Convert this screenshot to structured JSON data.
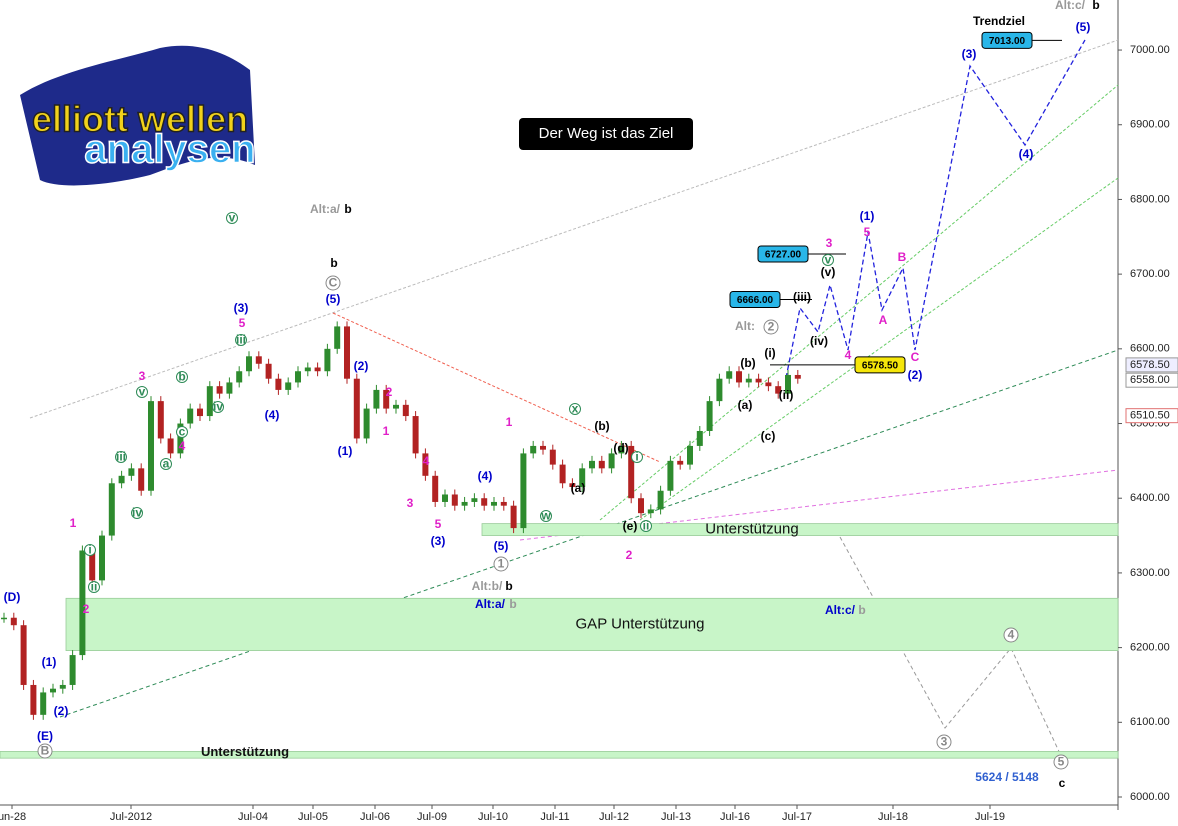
{
  "chart_data": {
    "type": "candlestick",
    "logo": {
      "line1": "elliott wellen",
      "line2": "analysen"
    },
    "headline": "Der Weg ist das Ziel",
    "values": [
      6240,
      6230,
      6150,
      6110,
      6140,
      6145,
      6150,
      6190,
      6330,
      6290,
      6350,
      6420,
      6430,
      6440,
      6410,
      6530,
      6480,
      6460,
      6500,
      6520,
      6510,
      6550,
      6540,
      6555,
      6570,
      6590,
      6580,
      6560,
      6545,
      6555,
      6570,
      6575,
      6570,
      6600,
      6630,
      6560,
      6480,
      6520,
      6545,
      6520,
      6525,
      6510,
      6460,
      6430,
      6395,
      6405,
      6390,
      6395,
      6400,
      6390,
      6395,
      6390,
      6360,
      6460,
      6470,
      6465,
      6445,
      6420,
      6415,
      6440,
      6450,
      6440,
      6460,
      6470,
      6400,
      6380,
      6385,
      6410,
      6450,
      6445,
      6470,
      6490,
      6530,
      6560,
      6570,
      6555,
      6560,
      6555,
      6550,
      6540,
      6565,
      6560
    ],
    "up_color": "#2e8b2e",
    "down_color": "#b22222",
    "ylim": [
      6000,
      7067
    ],
    "yticks": [
      {
        "value": 6000,
        "label": "6000.00"
      },
      {
        "value": 6100,
        "label": "6100.00"
      },
      {
        "value": 6200,
        "label": "6200.00"
      },
      {
        "value": 6300,
        "label": "6300.00"
      },
      {
        "value": 6400,
        "label": "6400.00"
      },
      {
        "value": 6500,
        "label": "6500.00"
      },
      {
        "value": 6600,
        "label": "6600.00"
      },
      {
        "value": 6700,
        "label": "6700.00"
      },
      {
        "value": 6800,
        "label": "6800.00"
      },
      {
        "value": 6900,
        "label": "6900.00"
      },
      {
        "value": 7000,
        "label": "7000.00"
      }
    ],
    "xticks": [
      "un-28",
      "Jul-2012",
      "Jul-04",
      "Jul-05",
      "Jul-06",
      "Jul-09",
      "Jul-10",
      "Jul-11",
      "Jul-12",
      "Jul-13",
      "Jul-16",
      "Jul-17",
      "Jul-18",
      "Jul-19"
    ],
    "axis_markers": [
      {
        "value": 6578.5,
        "label": "6578.50"
      },
      {
        "value": 6558,
        "label": "6558.00"
      },
      {
        "value": 6510.5,
        "label": "6510.50"
      }
    ],
    "target_boxes": [
      {
        "value": 7013,
        "label": "7013.00",
        "color": "#29b6e8"
      },
      {
        "value": 6727,
        "label": "6727.00",
        "color": "#29b6e8"
      },
      {
        "value": 6666,
        "label": "6666.00",
        "color": "#29b6e8"
      },
      {
        "value": 6578.5,
        "label": "6578.50",
        "color": "#f5e60a"
      }
    ],
    "zones": [
      {
        "name": "Unterstützung",
        "range": [
          6350,
          6366
        ]
      },
      {
        "name": "GAP Unterstützung",
        "range": [
          6196,
          6266
        ]
      },
      {
        "name": "Unterstützung",
        "range": [
          6052,
          6061
        ]
      }
    ],
    "annotations": [
      {
        "text": "(D)",
        "color": "#0000cc"
      },
      {
        "text": "(E)",
        "color": "#0000cc"
      },
      {
        "text": "(1)",
        "color": "#0000cc"
      },
      {
        "text": "(2)",
        "color": "#0000cc"
      },
      {
        "text": "1",
        "color": "#e020c8"
      },
      {
        "text": "2",
        "color": "#e020c8"
      },
      {
        "text": "3",
        "color": "#e020c8"
      },
      {
        "text": "4",
        "color": "#e020c8"
      },
      {
        "text": "(3)",
        "color": "#0000cc"
      },
      {
        "text": "5",
        "color": "#e020c8"
      },
      {
        "text": "(4)",
        "color": "#0000cc"
      },
      {
        "text": "b",
        "color": "#000000"
      },
      {
        "text": "(5)",
        "color": "#0000cc"
      },
      {
        "text": "Alt:a/",
        "color": "#999999"
      },
      {
        "text": "b",
        "color": "#000000"
      },
      {
        "text": "(1)",
        "color": "#0000cc"
      },
      {
        "text": "(2)",
        "color": "#0000cc"
      },
      {
        "text": "2",
        "color": "#e020c8"
      },
      {
        "text": "1",
        "color": "#e020c8"
      },
      {
        "text": "3",
        "color": "#e020c8"
      },
      {
        "text": "4",
        "color": "#e020c8"
      },
      {
        "text": "5",
        "color": "#e020c8"
      },
      {
        "text": "(3)",
        "color": "#0000cc"
      },
      {
        "text": "(4)",
        "color": "#0000cc"
      },
      {
        "text": "(5)",
        "color": "#0000cc"
      },
      {
        "text": "1",
        "color": "#e020c8"
      },
      {
        "text": "Alt:b/",
        "color": "#999999"
      },
      {
        "text": "b",
        "color": "#000000"
      },
      {
        "text": "Alt:a/",
        "color": "#0000cc"
      },
      {
        "text": "b",
        "color": "#999999"
      },
      {
        "text": "2",
        "color": "#e020c8"
      },
      {
        "text": "Alt:",
        "color": "#999999"
      },
      {
        "text": "(1)",
        "color": "#0000cc"
      },
      {
        "text": "5",
        "color": "#e020c8"
      },
      {
        "text": "3",
        "color": "#e020c8"
      },
      {
        "text": "4",
        "color": "#e020c8"
      },
      {
        "text": "A",
        "color": "#e020c8"
      },
      {
        "text": "B",
        "color": "#e020c8"
      },
      {
        "text": "C",
        "color": "#e020c8"
      },
      {
        "text": "(2)",
        "color": "#0000cc"
      },
      {
        "text": "(3)",
        "color": "#0000cc"
      },
      {
        "text": "(4)",
        "color": "#0000cc"
      },
      {
        "text": "(5)",
        "color": "#0000cc"
      },
      {
        "text": "Trendziel",
        "color": "#000000"
      },
      {
        "text": "Alt:c/",
        "color": "#999999"
      },
      {
        "text": "b",
        "color": "#000000"
      },
      {
        "text": "Alt:c/",
        "color": "#0000cc"
      },
      {
        "text": "b",
        "color": "#999999"
      },
      {
        "text": "5624 / 5148",
        "color": "#3060d0"
      },
      {
        "text": "c",
        "color": "#000000"
      },
      {
        "text": "(iii)",
        "color": "#000000"
      },
      {
        "text": "(iv)",
        "color": "#000000"
      },
      {
        "text": "(v)",
        "color": "#000000"
      },
      {
        "text": "(i)",
        "color": "#000000"
      },
      {
        "text": "(ii)",
        "color": "#000000"
      },
      {
        "text": "(a)",
        "color": "#000000"
      },
      {
        "text": "(b)",
        "color": "#000000"
      },
      {
        "text": "(c)",
        "color": "#000000"
      },
      {
        "text": "(a)",
        "color": "#000000"
      },
      {
        "text": "(b)",
        "color": "#000000"
      },
      {
        "text": "(d)",
        "color": "#000000"
      },
      {
        "text": "(e)",
        "color": "#000000"
      }
    ],
    "circled": [
      {
        "text": "C",
        "color": "#888888"
      },
      {
        "text": "1",
        "color": "#888888"
      },
      {
        "text": "2",
        "color": "#888888"
      },
      {
        "text": "3",
        "color": "#888888"
      },
      {
        "text": "4",
        "color": "#888888"
      },
      {
        "text": "5",
        "color": "#888888"
      },
      {
        "text": "B",
        "color": "#888888"
      },
      {
        "text": "i",
        "color": "#2e8b57"
      },
      {
        "text": "ii",
        "color": "#2e8b57"
      },
      {
        "text": "iii",
        "color": "#2e8b57"
      },
      {
        "text": "iv",
        "color": "#2e8b57"
      },
      {
        "text": "v",
        "color": "#2e8b57"
      },
      {
        "text": "a",
        "color": "#2e8b57"
      },
      {
        "text": "b",
        "color": "#2e8b57"
      },
      {
        "text": "c",
        "color": "#2e8b57"
      },
      {
        "text": "iii",
        "color": "#2e8b57"
      },
      {
        "text": "v",
        "color": "#2e8b57"
      },
      {
        "text": "x",
        "color": "#2e8b57"
      },
      {
        "text": "w",
        "color": "#2e8b57"
      },
      {
        "text": "iv",
        "color": "#2e8b57"
      },
      {
        "text": "v",
        "color": "#2e8b57"
      },
      {
        "text": "i",
        "color": "#2e8b57"
      },
      {
        "text": "ii",
        "color": "#2e8b57"
      }
    ]
  }
}
